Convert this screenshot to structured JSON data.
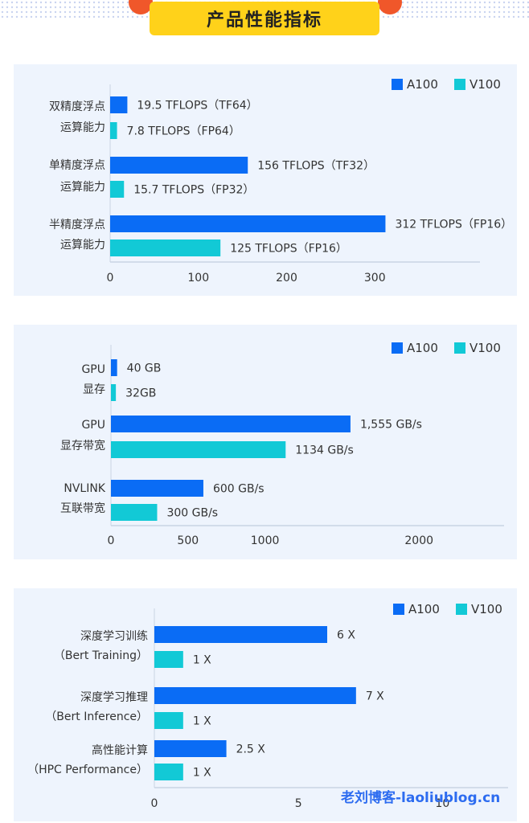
{
  "header": {
    "title": "产品性能指标"
  },
  "colors": {
    "a100": "#0a6cf5",
    "v100": "#12c9d6",
    "panel_bg": "#eef4fd",
    "axis": "#c9d3e3",
    "banner": "#ffd21a",
    "circle": "#f0572a",
    "label_text": "#333333",
    "watermark": "#2d6cf0"
  },
  "watermark": "老刘博客-laoliublog.cn",
  "chart_data": [
    {
      "type": "bar",
      "orientation": "horizontal",
      "legend": {
        "position": "top-right",
        "entries": [
          "A100",
          "V100"
        ]
      },
      "categories": [
        [
          "双精度浮点",
          "运算能力"
        ],
        [
          "单精度浮点",
          "运算能力"
        ],
        [
          "半精度浮点",
          "运算能力"
        ]
      ],
      "series": [
        {
          "name": "A100",
          "values": [
            19.5,
            156,
            312
          ],
          "labels": [
            "19.5 TFLOPS（TF64）",
            "156 TFLOPS（TF32）",
            "312 TFLOPS（FP16）"
          ]
        },
        {
          "name": "V100",
          "values": [
            7.8,
            15.7,
            125
          ],
          "labels": [
            "7.8 TFLOPS（FP64）",
            "15.7 TFLOPS（FP32）",
            "125 TFLOPS（FP16）"
          ]
        }
      ],
      "xlim": [
        0,
        410
      ],
      "xticks": [
        0,
        100,
        200,
        300
      ],
      "xtick_labels": [
        "0",
        "100",
        "200",
        "300"
      ],
      "grid": false
    },
    {
      "type": "bar",
      "orientation": "horizontal",
      "legend": {
        "position": "top-right",
        "entries": [
          "A100",
          "V100"
        ]
      },
      "categories": [
        [
          "GPU",
          "显存"
        ],
        [
          "GPU",
          "显存带宽"
        ],
        [
          "NVLINK",
          "互联带宽"
        ]
      ],
      "series": [
        {
          "name": "A100",
          "values": [
            40,
            1555,
            600
          ],
          "labels": [
            "40 GB",
            "1,555 GB/s",
            "600 GB/s"
          ]
        },
        {
          "name": "V100",
          "values": [
            32,
            1134,
            300
          ],
          "labels": [
            "32GB",
            "1134 GB/s",
            "300 GB/s"
          ]
        }
      ],
      "xlim": [
        0,
        2500
      ],
      "xticks": [
        0,
        500,
        1000,
        2000
      ],
      "xtick_labels": [
        "0",
        "500",
        "1000",
        "2000"
      ],
      "grid": false
    },
    {
      "type": "bar",
      "orientation": "horizontal",
      "legend": {
        "position": "top-right",
        "entries": [
          "A100",
          "V100"
        ]
      },
      "categories": [
        [
          "深度学习训练",
          "（Bert Training）"
        ],
        [
          "深度学习推理",
          "（Bert Inference）"
        ],
        [
          "高性能计算",
          "（HPC Performance）"
        ]
      ],
      "series": [
        {
          "name": "A100",
          "values": [
            6,
            7,
            2.5
          ],
          "labels": [
            "6 X",
            "7 X",
            "2.5 X"
          ]
        },
        {
          "name": "V100",
          "values": [
            1,
            1,
            1
          ],
          "labels": [
            "1 X",
            "1 X",
            "1 X"
          ]
        }
      ],
      "xlim": [
        0,
        12
      ],
      "xticks": [
        0,
        5,
        10
      ],
      "xtick_labels": [
        "0",
        "5",
        "10"
      ],
      "grid": false
    }
  ]
}
